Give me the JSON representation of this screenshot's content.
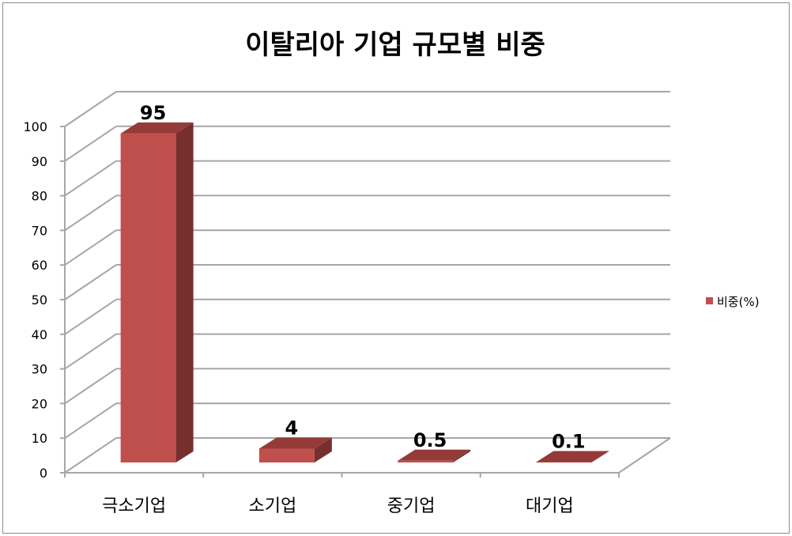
{
  "chart_data": {
    "type": "bar",
    "style": "3d-column",
    "title": "이탈리아 기업 규모별 비중",
    "categories": [
      "극소기업",
      "소기업",
      "중기업",
      "대기업"
    ],
    "series": [
      {
        "name": "비중(%)",
        "values": [
          95,
          4,
          0.5,
          0.1
        ],
        "color": "#c0504d"
      }
    ],
    "data_labels": [
      "95",
      "4",
      "0.5",
      "0.1"
    ],
    "xlabel": "",
    "ylabel": "",
    "ylim": [
      0,
      100
    ],
    "yticks": [
      0,
      10,
      20,
      30,
      40,
      50,
      60,
      70,
      80,
      90,
      100
    ],
    "grid": true,
    "legend": "right"
  }
}
